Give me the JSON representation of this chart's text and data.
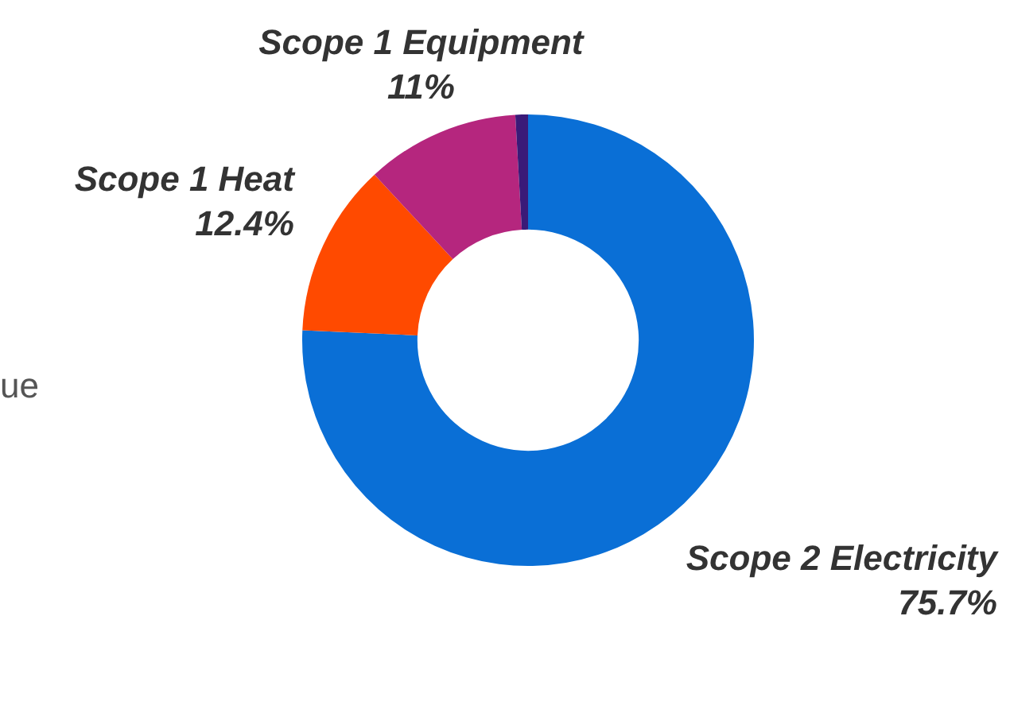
{
  "chart_data": {
    "type": "donut",
    "categories": [
      "Scope 2 Electricity",
      "Scope 1 Heat",
      "Scope 1 Equipment",
      null
    ],
    "values": [
      75.7,
      12.4,
      11,
      0.9
    ],
    "colors": [
      "#0a6fd6",
      "#ff4a00",
      "#b5267e",
      "#3a1a78"
    ],
    "value_labels": [
      "75.7%",
      "12.4%",
      "11%",
      null
    ],
    "legend": false,
    "annotations": [
      "ue"
    ]
  }
}
